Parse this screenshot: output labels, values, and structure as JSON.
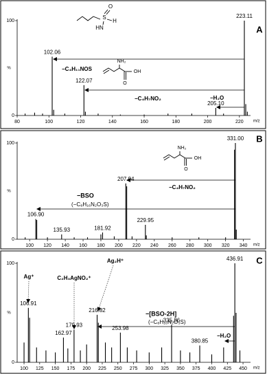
{
  "chart_data": [
    {
      "type": "spectrum",
      "panel": "A",
      "xlabel": "m/z",
      "ylabel": "%",
      "color": "#000000",
      "x": [
        85,
        91,
        96,
        102.06,
        103,
        110,
        122.07,
        123,
        131,
        145,
        160,
        175,
        190,
        205.1,
        210,
        223.11,
        224,
        225
      ],
      "values": [
        2,
        3,
        2,
        62,
        6,
        2,
        32,
        4,
        2,
        1,
        1,
        2,
        2,
        8,
        2,
        100,
        12,
        4
      ],
      "x_labels": [
        null,
        null,
        null,
        "102.06",
        null,
        null,
        "122.07",
        null,
        null,
        null,
        null,
        null,
        null,
        "205.10",
        null,
        "223.11",
        null,
        null
      ],
      "xlim": [
        80,
        227
      ],
      "xticks": [
        80,
        100,
        120,
        140,
        160,
        180,
        200,
        220
      ],
      "ylim": [
        0,
        100
      ],
      "yticks": [
        0,
        100
      ],
      "annotations": [
        "A",
        "−C₄H₁₁NOS",
        "−C₄H₇NO₂",
        "−H₂O",
        "S",
        "O",
        "H",
        "HN",
        "NH₂",
        "OH",
        "O"
      ]
    },
    {
      "type": "spectrum",
      "panel": "B",
      "xlabel": "m/z",
      "ylabel": "%",
      "color": "#000000",
      "x": [
        95,
        106.9,
        108,
        120,
        135.93,
        150,
        165,
        180,
        181.92,
        195,
        207.94,
        209,
        215,
        229.95,
        231,
        260,
        290,
        320,
        330,
        331.0,
        332
      ],
      "values": [
        2,
        21,
        20,
        2,
        5,
        2,
        2,
        5,
        7,
        3,
        58,
        55,
        3,
        15,
        4,
        2,
        2,
        2,
        93,
        100,
        10
      ],
      "x_labels": [
        null,
        "106.90",
        null,
        null,
        "135.93",
        null,
        null,
        null,
        "181.92",
        null,
        "207.94",
        null,
        null,
        "229.95",
        null,
        null,
        null,
        null,
        null,
        "331.00",
        null
      ],
      "xlim": [
        86,
        348
      ],
      "xticks": [
        100,
        120,
        140,
        160,
        180,
        200,
        220,
        240,
        260,
        280,
        300,
        320,
        340
      ],
      "ylim": [
        0,
        100
      ],
      "yticks": [
        0,
        100
      ],
      "annotations": [
        "B",
        "−C₄H₇NO₂",
        "−BSO",
        "(−C₈H₁₆N₂O₃S)",
        "NH₂",
        "OH",
        "O"
      ]
    },
    {
      "type": "spectrum",
      "panel": "C",
      "xlabel": "m/z",
      "ylabel": "%",
      "color": "#000000",
      "x": [
        100,
        106.91,
        108.9,
        120,
        135,
        150,
        162.97,
        170,
        179.93,
        190,
        200,
        216.82,
        218.8,
        230,
        240,
        253.98,
        265,
        280,
        300,
        320,
        335.86,
        350,
        365,
        380.85,
        400,
        419,
        434.9,
        436.91,
        438.9,
        445
      ],
      "values": [
        20,
        55,
        45,
        15,
        12,
        10,
        25,
        14,
        33,
        12,
        18,
        48,
        40,
        20,
        15,
        30,
        15,
        12,
        10,
        15,
        38,
        12,
        10,
        17,
        8,
        15,
        47,
        100,
        50,
        12
      ],
      "x_labels": [
        null,
        "106.91",
        null,
        null,
        null,
        null,
        "162.97",
        null,
        "179.93",
        null,
        null,
        "216.82",
        null,
        null,
        null,
        "253.98",
        null,
        null,
        null,
        null,
        "335.86",
        null,
        null,
        "380.85",
        null,
        null,
        null,
        "436.91",
        null,
        null
      ],
      "xlim": [
        89,
        462
      ],
      "xticks": [
        100,
        125,
        150,
        175,
        200,
        225,
        250,
        275,
        300,
        325,
        350,
        375,
        400,
        425,
        450
      ],
      "ylim": [
        0,
        100
      ],
      "yticks": [
        0,
        100
      ],
      "annotations": [
        "C",
        "Ag⁺",
        "C₂H₃AgNO₂⁺",
        "Ag₂H⁺",
        "−[BSO-2H]",
        "(−C₈H₁₆N₂O₃S)",
        "−H₂O"
      ]
    }
  ]
}
